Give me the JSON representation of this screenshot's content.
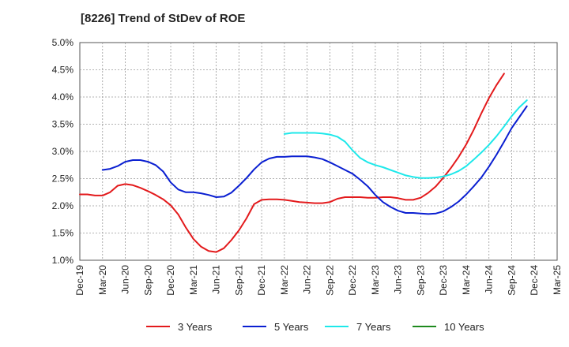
{
  "chart_data": {
    "type": "line",
    "title": "[8226]  Trend of StDev of ROE",
    "xlabel": "",
    "ylabel": "",
    "x_ticks": [
      "Dec-19",
      "Mar-20",
      "Jun-20",
      "Sep-20",
      "Dec-20",
      "Mar-21",
      "Jun-21",
      "Sep-21",
      "Dec-21",
      "Mar-22",
      "Jun-22",
      "Sep-22",
      "Dec-22",
      "Mar-23",
      "Jun-23",
      "Sep-23",
      "Dec-23",
      "Mar-24",
      "Jun-24",
      "Sep-24",
      "Dec-24",
      "Mar-25"
    ],
    "y_ticks": [
      "1.0%",
      "1.5%",
      "2.0%",
      "2.5%",
      "3.0%",
      "3.5%",
      "4.0%",
      "4.5%",
      "5.0%"
    ],
    "ylim": [
      1.0,
      5.0
    ],
    "grid": true,
    "legend_position": "bottom",
    "series": [
      {
        "name": "3 Years",
        "color": "#e31a1c",
        "start_index": 0,
        "values": [
          2.21,
          2.21,
          2.19,
          2.19,
          2.25,
          2.37,
          2.4,
          2.38,
          2.33,
          2.27,
          2.2,
          2.12,
          2.01,
          1.84,
          1.6,
          1.39,
          1.25,
          1.17,
          1.15,
          1.22,
          1.37,
          1.55,
          1.77,
          2.03,
          2.11,
          2.12,
          2.12,
          2.11,
          2.09,
          2.07,
          2.06,
          2.05,
          2.05,
          2.07,
          2.13,
          2.16,
          2.16,
          2.16,
          2.15,
          2.15,
          2.16,
          2.16,
          2.14,
          2.11,
          2.11,
          2.15,
          2.24,
          2.36,
          2.52,
          2.7,
          2.9,
          3.13,
          3.4,
          3.7,
          3.98,
          4.22,
          4.43
        ]
      },
      {
        "name": "5 Years",
        "color": "#0a1fd1",
        "start_index": 3,
        "values": [
          2.66,
          2.68,
          2.73,
          2.81,
          2.84,
          2.84,
          2.81,
          2.75,
          2.63,
          2.43,
          2.3,
          2.25,
          2.25,
          2.23,
          2.2,
          2.16,
          2.17,
          2.24,
          2.37,
          2.51,
          2.67,
          2.8,
          2.87,
          2.9,
          2.9,
          2.91,
          2.91,
          2.91,
          2.89,
          2.86,
          2.8,
          2.73,
          2.66,
          2.59,
          2.48,
          2.36,
          2.2,
          2.07,
          1.98,
          1.91,
          1.87,
          1.87,
          1.86,
          1.85,
          1.86,
          1.9,
          1.98,
          2.08,
          2.21,
          2.36,
          2.52,
          2.72,
          2.94,
          3.18,
          3.43,
          3.63,
          3.83
        ]
      },
      {
        "name": "7 Years",
        "color": "#1ee8ea",
        "start_index": 27,
        "values": [
          3.32,
          3.34,
          3.34,
          3.34,
          3.34,
          3.33,
          3.31,
          3.27,
          3.18,
          3.02,
          2.88,
          2.8,
          2.75,
          2.71,
          2.66,
          2.61,
          2.56,
          2.53,
          2.51,
          2.51,
          2.52,
          2.54,
          2.58,
          2.64,
          2.73,
          2.85,
          2.98,
          3.12,
          3.28,
          3.46,
          3.65,
          3.81,
          3.94
        ]
      },
      {
        "name": "10 Years",
        "color": "#1e8a1e",
        "start_index": 0,
        "values": []
      }
    ]
  }
}
